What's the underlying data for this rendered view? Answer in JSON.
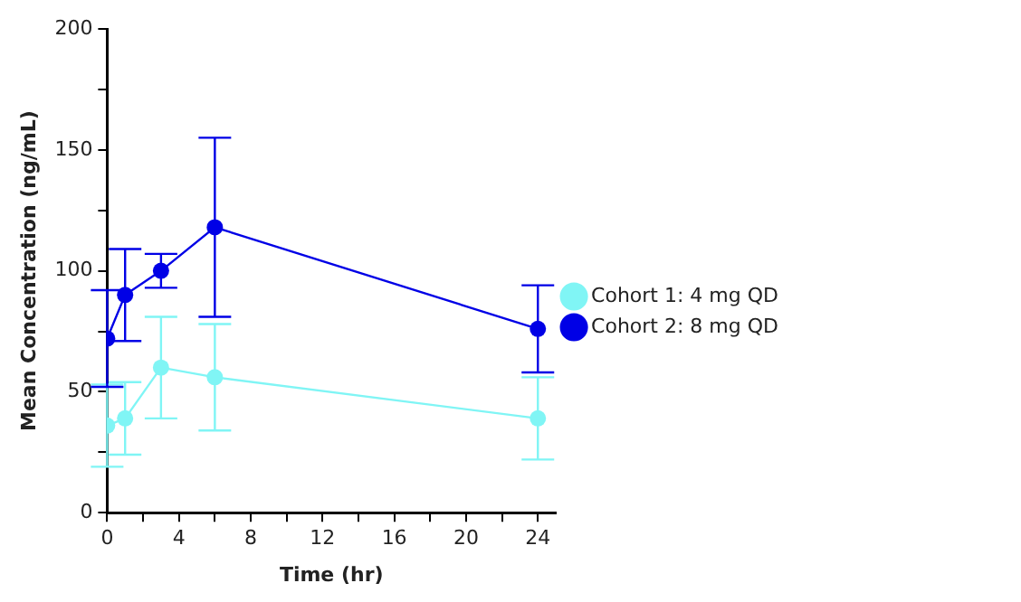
{
  "chart_data": {
    "type": "line",
    "xlabel": "Time (hr)",
    "ylabel": "Mean Concentration (ng/mL)",
    "x": [
      0,
      1,
      3,
      6,
      24
    ],
    "xlim": [
      0,
      25
    ],
    "xticks": [
      0,
      {
        "value": 2,
        "label": null
      },
      4,
      {
        "value": 6,
        "label": null
      },
      8,
      {
        "value": 10,
        "label": null
      },
      12,
      {
        "value": 14,
        "label": null
      },
      16,
      {
        "value": 18,
        "label": null
      },
      20,
      {
        "value": 22,
        "label": null
      },
      24
    ],
    "ylim": [
      0,
      200
    ],
    "yticks": [
      0,
      {
        "value": 25,
        "label": null
      },
      50,
      {
        "value": 75,
        "label": null
      },
      100,
      {
        "value": 125,
        "label": null
      },
      150,
      {
        "value": 175,
        "label": null
      },
      200
    ],
    "series": [
      {
        "name": "Cohort 1: 4 mg QD",
        "color": "#80f5f5",
        "values": [
          36,
          39,
          60,
          56,
          39
        ],
        "errors": [
          17,
          15,
          21,
          22,
          17
        ]
      },
      {
        "name": "Cohort 2: 8 mg QD",
        "color": "#0000e6",
        "values": [
          72,
          90,
          100,
          118,
          76
        ],
        "errors": [
          20,
          19,
          7,
          37,
          18
        ]
      }
    ],
    "grid": false,
    "legend": "right",
    "marker": "circle",
    "line_style": "solid"
  }
}
